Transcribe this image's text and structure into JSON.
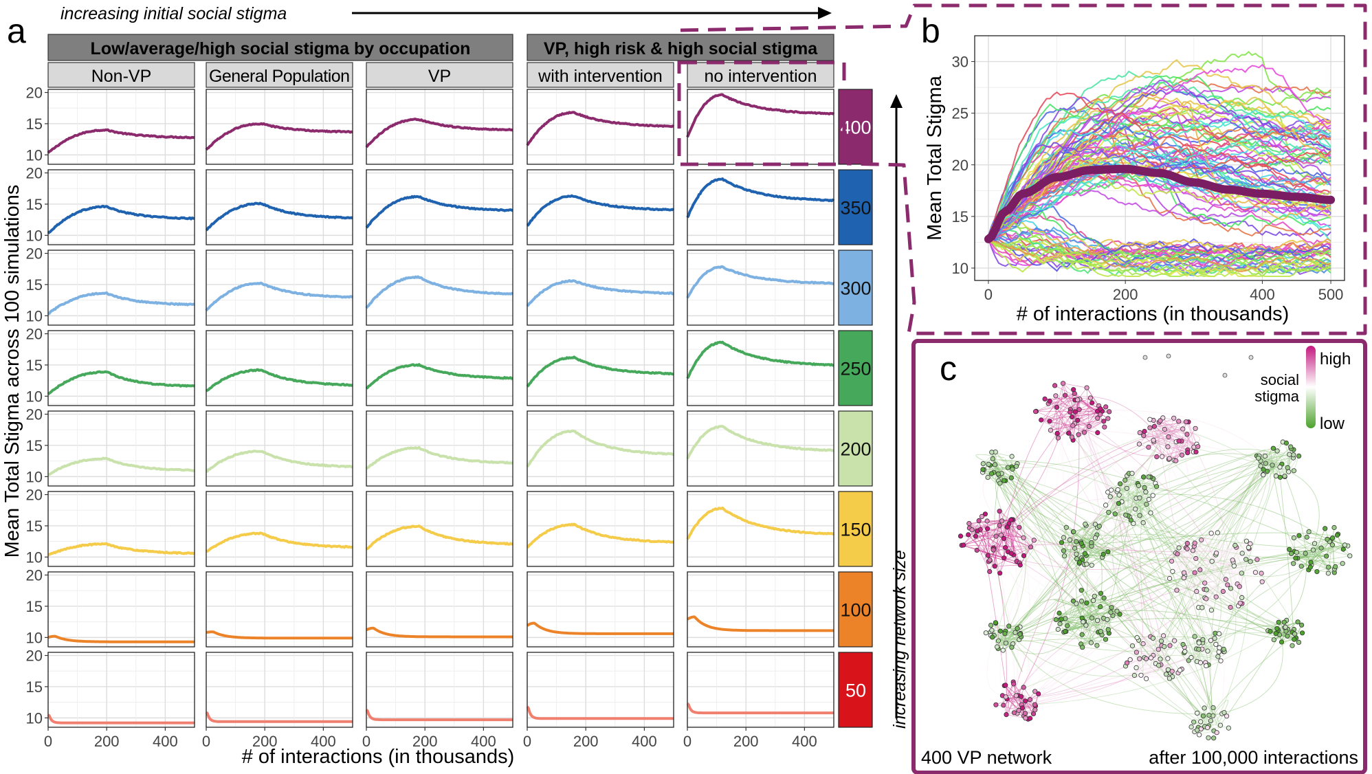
{
  "labels": {
    "panel_a": "a",
    "panel_b": "b",
    "panel_c": "c",
    "arrow_top": "increasing initial social stigma",
    "arrow_right": "increasing network size"
  },
  "chart_data": [
    {
      "id": "a",
      "type": "line",
      "xlabel": "# of interactions (in thousands)",
      "ylabel": "Mean Total Stigma across 100 simulations",
      "xlim": [
        0,
        500
      ],
      "ylim": [
        8.5,
        20.5
      ],
      "xticks": [
        "0",
        "200",
        "400"
      ],
      "yticks": [
        "10",
        "15",
        "20"
      ],
      "group_headers": [
        "Low/average/high social stigma by occupation",
        "VP, high risk & high social stigma"
      ],
      "columns": [
        "Non-VP",
        "General Population",
        "VP",
        "with intervention",
        "no intervention"
      ],
      "rows": [
        {
          "size": "400",
          "color": "#8B2A6D",
          "peaks": [
            14,
            15,
            15.7,
            16.8,
            19.6
          ],
          "ends": [
            12.8,
            13.7,
            14,
            14.6,
            16.6
          ],
          "starts": [
            10.3,
            10.8,
            11.2,
            11.5,
            12.8
          ]
        },
        {
          "size": "350",
          "color": "#1F63B0",
          "peaks": [
            14.6,
            15.1,
            16.2,
            16.3,
            19
          ],
          "ends": [
            12.7,
            12.8,
            14,
            14.1,
            15.6
          ],
          "starts": [
            10.3,
            10.8,
            11.2,
            11.5,
            12.8
          ]
        },
        {
          "size": "300",
          "color": "#7DB1E2",
          "peaks": [
            13.6,
            15.2,
            16.2,
            15.6,
            17.8
          ],
          "ends": [
            11.8,
            13,
            13.5,
            13.6,
            15.2
          ],
          "starts": [
            10.3,
            10.8,
            11.2,
            11.5,
            12.8
          ]
        },
        {
          "size": "250",
          "color": "#45A85A",
          "peaks": [
            13.9,
            14.2,
            15,
            16.2,
            18.6
          ],
          "ends": [
            11.6,
            11.8,
            12.9,
            13.6,
            15
          ],
          "starts": [
            10.3,
            10.8,
            11.2,
            11.5,
            12.8
          ]
        },
        {
          "size": "200",
          "color": "#C9E2AC",
          "peaks": [
            12.9,
            14.1,
            14.6,
            17.3,
            18
          ],
          "ends": [
            11,
            11.6,
            12.2,
            13.6,
            14.2
          ],
          "starts": [
            10.3,
            10.8,
            11.2,
            11.5,
            12.8
          ]
        },
        {
          "size": "150",
          "color": "#F5CB4A",
          "peaks": [
            12.1,
            13.8,
            14.9,
            15.2,
            17.8
          ],
          "ends": [
            10.6,
            11.6,
            12.1,
            12.4,
            13.7
          ],
          "starts": [
            10.3,
            10.8,
            11.2,
            11.5,
            12.8
          ]
        },
        {
          "size": "100",
          "color": "#EC8329",
          "peaks": [
            10.2,
            10.9,
            11.5,
            12.3,
            13.3
          ],
          "ends": [
            9.3,
            9.9,
            10.1,
            10.6,
            11.1
          ],
          "starts": [
            10,
            10.8,
            11.2,
            11.9,
            12.9
          ]
        },
        {
          "size": "50",
          "color": "#F07F6F",
          "peaks": [
            10.5,
            10.9,
            11.3,
            11.8,
            12.3
          ],
          "ends": [
            9.2,
            9.4,
            9.7,
            9.9,
            10.8
          ],
          "starts": [
            10.5,
            10.9,
            11.3,
            11.8,
            12.3
          ]
        }
      ],
      "strip_colors": [
        "#8B2A6D",
        "#1F63B0",
        "#7DB1E2",
        "#45A85A",
        "#C9E2AC",
        "#F5CB4A",
        "#EC8329",
        "#D8131A"
      ]
    },
    {
      "id": "b",
      "type": "line",
      "xlabel": "# of interactions (in thousands)",
      "ylabel": "Mean Total Stigma",
      "xlim": [
        -20,
        520
      ],
      "ylim": [
        8.8,
        32.5
      ],
      "xticks": [
        "0",
        "200",
        "400",
        "500"
      ],
      "yticks": [
        "10",
        "15",
        "20",
        "25",
        "30"
      ],
      "mean_curve": {
        "x": [
          0,
          25,
          50,
          100,
          150,
          200,
          250,
          300,
          350,
          400,
          450,
          500
        ],
        "y": [
          12.8,
          15.5,
          17.2,
          18.8,
          19.5,
          19.6,
          19.2,
          18.3,
          17.6,
          17.2,
          16.9,
          16.6
        ]
      },
      "series_count": 100
    },
    {
      "id": "c",
      "type": "other",
      "legend_title": "social stigma",
      "legend_high": "high",
      "legend_low": "low",
      "caption_left": "400 VP network",
      "caption_right": "after 100,000 interactions",
      "colors": {
        "high": "#C4177E",
        "mid": "#FFFFFF",
        "low": "#4DA22C"
      }
    }
  ]
}
